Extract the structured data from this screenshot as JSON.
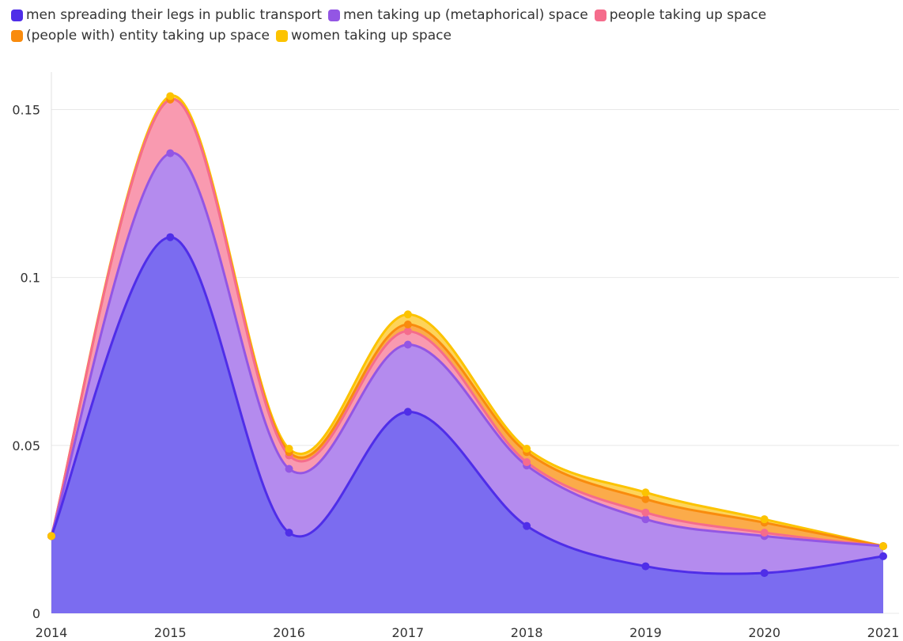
{
  "chart_data": {
    "type": "stacked_area",
    "categories": [
      "2014",
      "2015",
      "2016",
      "2017",
      "2018",
      "2019",
      "2020",
      "2021"
    ],
    "series": [
      {
        "name": "men spreading their legs in public transport",
        "color": "#4f2ee8",
        "fill": "#7b6cf0",
        "values": [
          0.023,
          0.112,
          0.024,
          0.06,
          0.026,
          0.014,
          0.012,
          0.017
        ]
      },
      {
        "name": "men taking up (metaphorical) space",
        "color": "#9356e4",
        "fill": "#b48bee",
        "values": [
          0,
          0.025,
          0.019,
          0.02,
          0.018,
          0.014,
          0.011,
          0.003
        ]
      },
      {
        "name": "people taking up space",
        "color": "#f56c8c",
        "fill": "#f99ab0",
        "values": [
          0,
          0.016,
          0.004,
          0.004,
          0.001,
          0.002,
          0.001,
          0
        ]
      },
      {
        "name": "(people with) entity taking up space",
        "color": "#f98b0d",
        "fill": "#fbab4a",
        "values": [
          0,
          0,
          0.001,
          0.002,
          0.003,
          0.004,
          0.003,
          0
        ]
      },
      {
        "name": "women taking up space",
        "color": "#fcc300",
        "fill": "#fdd35a",
        "values": [
          0,
          0.001,
          0.001,
          0.003,
          0.001,
          0.002,
          0.001,
          0
        ]
      }
    ],
    "ylim": [
      0,
      0.16
    ],
    "yticks": [
      0,
      0.05,
      0.1,
      0.15
    ],
    "grid": true
  }
}
